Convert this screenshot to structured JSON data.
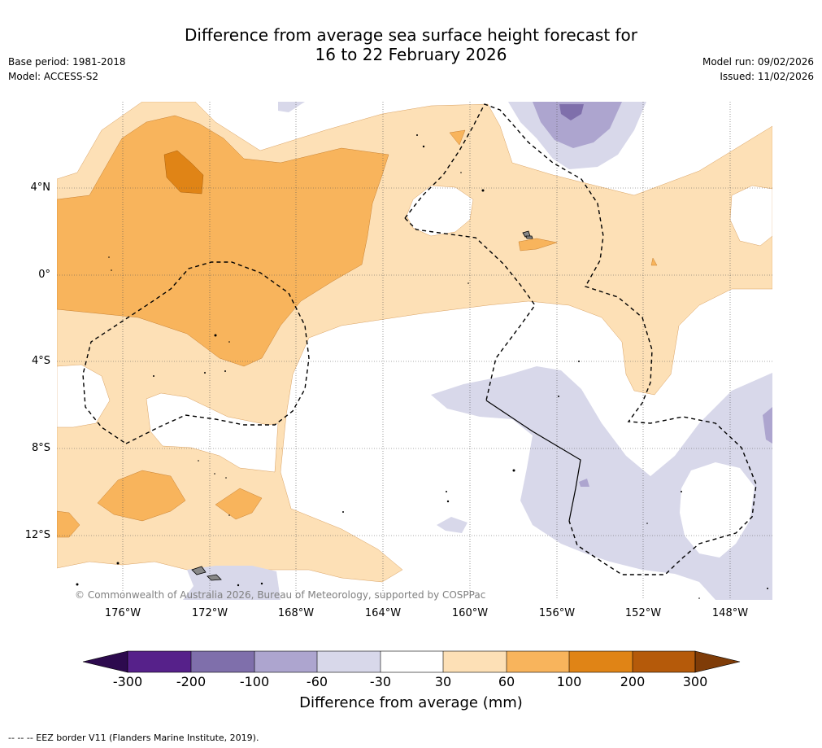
{
  "title": {
    "line1": "Difference from average sea surface height forecast for",
    "line2": "16 to 22 February 2026"
  },
  "meta_left": {
    "base_period": "Base period: 1981-2018",
    "model": "Model: ACCESS-S2"
  },
  "meta_right": {
    "model_run": "Model run: 09/02/2026",
    "issued": "Issued: 11/02/2026"
  },
  "latitude_labels": [
    "4°N",
    "0°",
    "4°S",
    "8°S",
    "12°S"
  ],
  "longitude_labels": [
    "176°W",
    "172°W",
    "168°W",
    "164°W",
    "160°W",
    "156°W",
    "152°W",
    "148°W"
  ],
  "copyright": "© Commonwealth of Australia 2026, Bureau of Meteorology, supported by COSPPac",
  "colorbar": {
    "title": "Difference from average (mm)",
    "ticks": [
      "-300",
      "-200",
      "-100",
      "-60",
      "-30",
      "30",
      "60",
      "100",
      "200",
      "300"
    ],
    "colors": [
      "#2d0a4e",
      "#56218a",
      "#7f6fab",
      "#ada5cf",
      "#d8d8ea",
      "#ffffff",
      "#fde0b6",
      "#f8b45c",
      "#e08416",
      "#b55a0a",
      "#7f3c08"
    ]
  },
  "footnote": "--  --  -- EEZ border V11 (Flanders Marine Institute, 2019)."
}
